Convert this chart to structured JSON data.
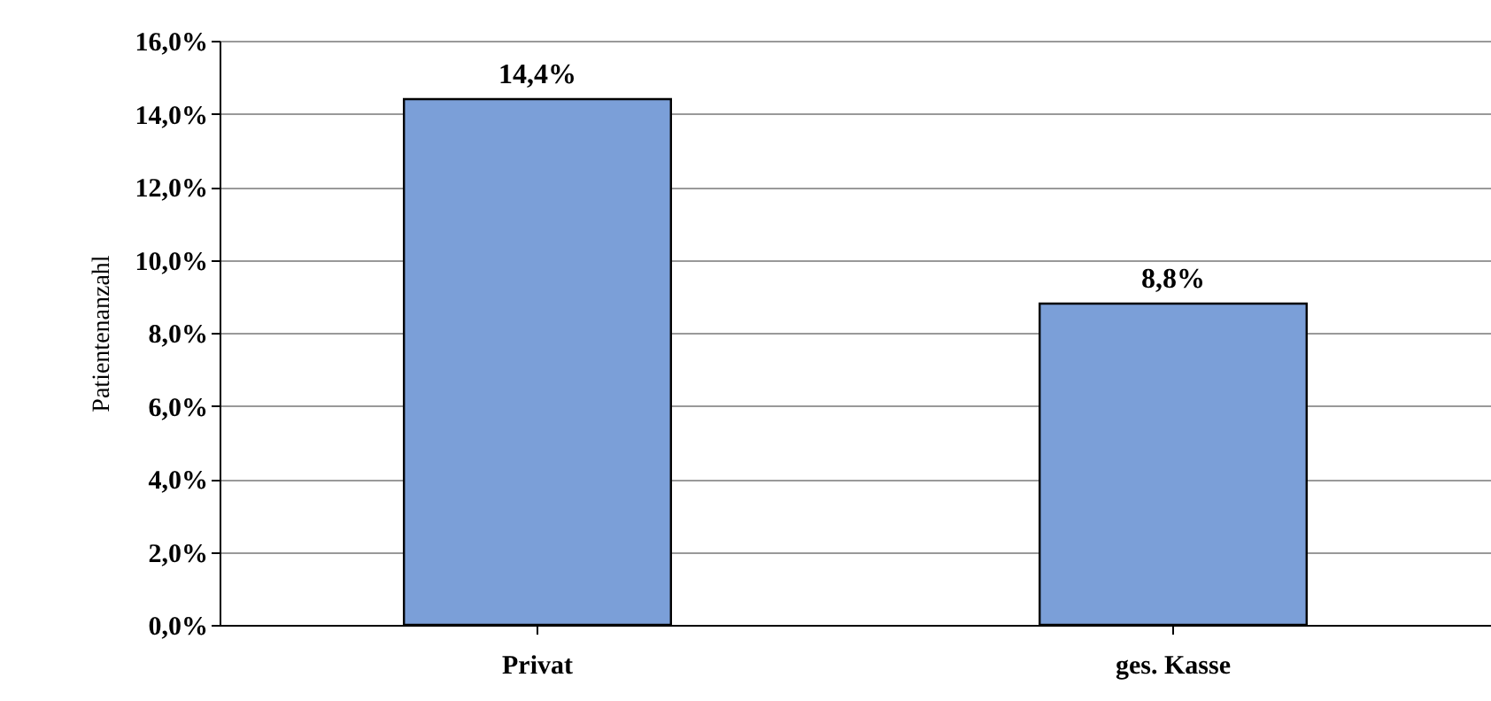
{
  "chart_data": {
    "type": "bar",
    "ylabel": "Patientenanzahl",
    "categories": [
      "Privat",
      "ges. Kasse"
    ],
    "values": [
      14.4,
      8.8
    ],
    "color": "#7b9fd8",
    "value_labels": [
      "14,4%",
      "8,8%"
    ],
    "ylim": [
      0,
      16
    ],
    "yticks": [
      {
        "value": 0,
        "label": "0,0%"
      },
      {
        "value": 2,
        "label": "2,0%"
      },
      {
        "value": 4,
        "label": "4,0%"
      },
      {
        "value": 6,
        "label": "6,0%"
      },
      {
        "value": 8,
        "label": "8,0%"
      },
      {
        "value": 10,
        "label": "10,0%"
      },
      {
        "value": 12,
        "label": "12,0%"
      },
      {
        "value": 14,
        "label": "14,0%"
      },
      {
        "value": 16,
        "label": "16,0%"
      }
    ],
    "grid": "y"
  }
}
